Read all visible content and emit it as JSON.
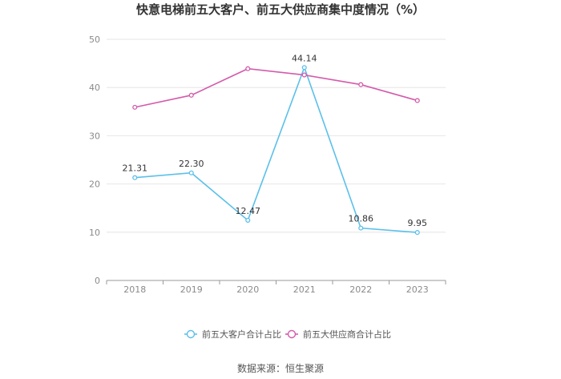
{
  "chart_data": {
    "type": "line",
    "title": "快意电梯前五大客户、前五大供应商集中度情况（%）",
    "x": [
      "2018",
      "2019",
      "2020",
      "2021",
      "2022",
      "2023"
    ],
    "ylim": [
      0,
      50
    ],
    "yticks": [
      "0",
      "10",
      "20",
      "30",
      "40",
      "50"
    ],
    "grid": true,
    "legend_position": "bottom",
    "series": [
      {
        "name": "前五大客户合计占比",
        "color": "#5bc0ea",
        "values": [
          21.31,
          22.3,
          12.47,
          44.14,
          10.86,
          9.95
        ],
        "labels": [
          "21.31",
          "22.30",
          "12.47",
          "44.14",
          "10.86",
          "9.95"
        ],
        "show_labels": true
      },
      {
        "name": "前五大供应商合计占比",
        "color": "#d45bab",
        "values": [
          35.9,
          38.4,
          43.9,
          42.6,
          40.6,
          37.3
        ],
        "show_labels": false
      }
    ]
  },
  "source_text": "数据来源：恒生聚源"
}
